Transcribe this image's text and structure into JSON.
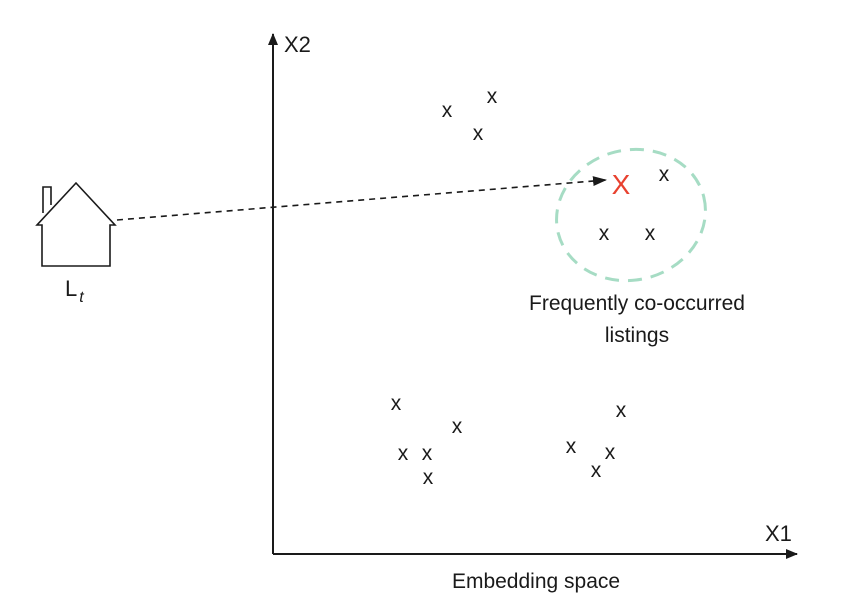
{
  "axes": {
    "x_label": "X1",
    "y_label": "X2",
    "caption": "Embedding space"
  },
  "listing": {
    "label_main": "L",
    "label_sub": "t"
  },
  "cluster": {
    "label_line1": "Frequently co-occurred",
    "label_line2": "listings",
    "ring_color": "#a6dcc4"
  },
  "points": {
    "glyph": "x",
    "highlight_glyph": "X",
    "highlight_color": "#e8412f"
  }
}
